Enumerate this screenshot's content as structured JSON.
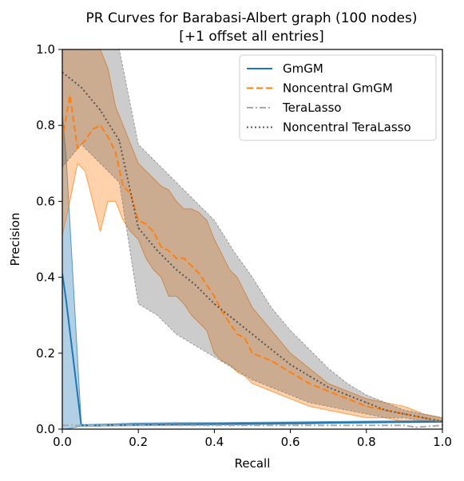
{
  "chart_data": {
    "type": "line",
    "title": "PR Curves for Barabasi-Albert graph (100 nodes)",
    "subtitle": "[+1 offset all entries]",
    "xlabel": "Recall",
    "ylabel": "Precision",
    "xlim": [
      0,
      1
    ],
    "ylim": [
      0,
      1
    ],
    "xticks": [
      "0.0",
      "0.2",
      "0.4",
      "0.6",
      "0.8",
      "1.0"
    ],
    "yticks": [
      "0.0",
      "0.2",
      "0.4",
      "0.6",
      "0.8",
      "1.0"
    ],
    "grid": false,
    "legend_position": "top-right",
    "series": [
      {
        "name": "GmGM",
        "color": "#1f77b4",
        "linestyle": "solid",
        "x": [
          0.0,
          0.01,
          0.05,
          0.1,
          0.2,
          0.3,
          0.4,
          0.5,
          0.6,
          0.7,
          0.8,
          0.9,
          1.0
        ],
        "y": [
          0.41,
          0.34,
          0.01,
          0.01,
          0.012,
          0.013,
          0.014,
          0.015,
          0.016,
          0.017,
          0.018,
          0.019,
          0.02
        ],
        "band_upper": [
          0.83,
          0.72,
          0.012,
          0.013,
          0.016,
          0.017,
          0.017,
          0.018,
          0.019,
          0.02,
          0.021,
          0.022,
          0.022
        ],
        "band_lower": [
          0.0,
          0.0,
          0.008,
          0.008,
          0.009,
          0.01,
          0.011,
          0.012,
          0.013,
          0.015,
          0.016,
          0.017,
          0.018
        ]
      },
      {
        "name": "Noncentral GmGM",
        "color": "#ff7f0e",
        "linestyle": "dashed",
        "x": [
          0.0,
          0.02,
          0.04,
          0.06,
          0.08,
          0.1,
          0.12,
          0.14,
          0.16,
          0.18,
          0.2,
          0.22,
          0.24,
          0.26,
          0.28,
          0.3,
          0.32,
          0.34,
          0.36,
          0.38,
          0.4,
          0.42,
          0.44,
          0.46,
          0.48,
          0.5,
          0.55,
          0.6,
          0.65,
          0.7,
          0.75,
          0.8,
          0.85,
          0.9,
          0.95,
          1.0
        ],
        "y": [
          0.76,
          0.88,
          0.74,
          0.76,
          0.79,
          0.8,
          0.77,
          0.73,
          0.64,
          0.62,
          0.55,
          0.54,
          0.52,
          0.48,
          0.47,
          0.45,
          0.45,
          0.43,
          0.41,
          0.38,
          0.35,
          0.31,
          0.28,
          0.25,
          0.24,
          0.2,
          0.18,
          0.15,
          0.12,
          0.1,
          0.08,
          0.06,
          0.05,
          0.04,
          0.03,
          0.02
        ],
        "band_upper": [
          1.0,
          1.0,
          1.0,
          1.0,
          1.0,
          1.0,
          0.95,
          0.85,
          0.8,
          0.75,
          0.7,
          0.68,
          0.66,
          0.64,
          0.63,
          0.6,
          0.58,
          0.58,
          0.57,
          0.55,
          0.5,
          0.46,
          0.42,
          0.4,
          0.36,
          0.32,
          0.26,
          0.2,
          0.16,
          0.12,
          0.1,
          0.08,
          0.07,
          0.06,
          0.04,
          0.03
        ],
        "band_lower": [
          0.51,
          0.6,
          0.7,
          0.68,
          0.6,
          0.52,
          0.6,
          0.6,
          0.55,
          0.52,
          0.5,
          0.45,
          0.42,
          0.4,
          0.35,
          0.35,
          0.33,
          0.3,
          0.28,
          0.26,
          0.2,
          0.18,
          0.17,
          0.15,
          0.14,
          0.12,
          0.1,
          0.08,
          0.06,
          0.05,
          0.04,
          0.03,
          0.03,
          0.02,
          0.02,
          0.02
        ]
      },
      {
        "name": "TeraLasso",
        "color": "#a9a9a9",
        "linestyle": "dashdot",
        "x": [
          0.0,
          0.1,
          0.2,
          0.3,
          0.4,
          0.5,
          0.6,
          0.7,
          0.8,
          0.9,
          0.93,
          1.0
        ],
        "y": [
          0.01,
          0.01,
          0.01,
          0.01,
          0.01,
          0.01,
          0.01,
          0.01,
          0.01,
          0.01,
          0.005,
          0.01
        ]
      },
      {
        "name": "Noncentral TeraLasso",
        "color": "#555555",
        "linestyle": "dotted",
        "x": [
          0.0,
          0.05,
          0.1,
          0.15,
          0.2,
          0.25,
          0.3,
          0.35,
          0.4,
          0.45,
          0.5,
          0.55,
          0.6,
          0.65,
          0.7,
          0.75,
          0.8,
          0.85,
          0.9,
          0.95,
          1.0
        ],
        "y": [
          0.94,
          0.9,
          0.84,
          0.76,
          0.53,
          0.47,
          0.42,
          0.38,
          0.33,
          0.29,
          0.25,
          0.21,
          0.17,
          0.14,
          0.11,
          0.09,
          0.07,
          0.05,
          0.04,
          0.03,
          0.02
        ],
        "band_upper": [
          1.0,
          1.0,
          1.0,
          1.0,
          0.75,
          0.7,
          0.65,
          0.6,
          0.55,
          0.47,
          0.4,
          0.32,
          0.26,
          0.21,
          0.16,
          0.12,
          0.09,
          0.07,
          0.05,
          0.04,
          0.03
        ],
        "band_lower": [
          0.69,
          0.75,
          0.7,
          0.65,
          0.33,
          0.3,
          0.25,
          0.22,
          0.19,
          0.16,
          0.13,
          0.11,
          0.09,
          0.07,
          0.06,
          0.05,
          0.04,
          0.03,
          0.03,
          0.02,
          0.02
        ]
      }
    ]
  }
}
